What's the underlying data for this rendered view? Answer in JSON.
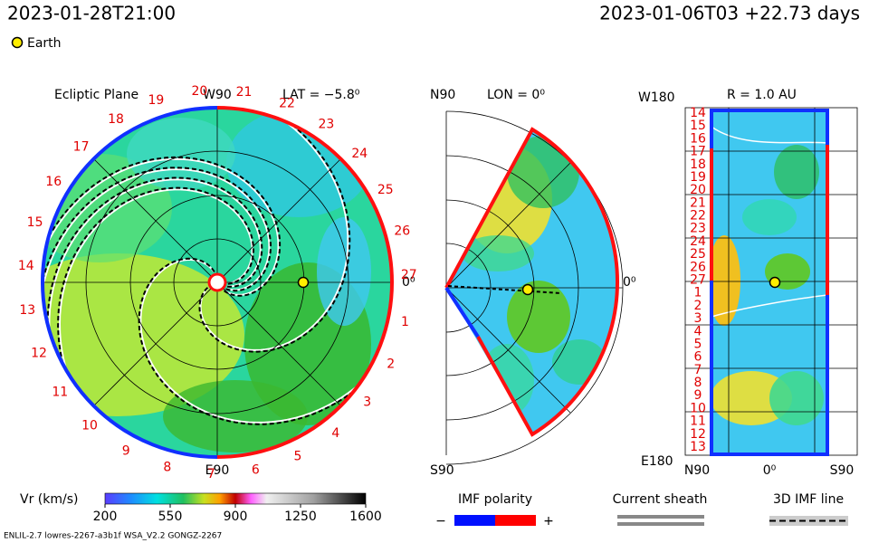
{
  "header": {
    "time": "2023-01-28T21:00",
    "reference": "2023-01-06T03 +22.73 days"
  },
  "legend": {
    "earth": "Earth"
  },
  "ecliptic_panel": {
    "title": "Ecliptic Plane",
    "top_label": "W90",
    "latitude": "LAT = −5.8⁰",
    "bottom_label": "E90",
    "right_label": "0⁰",
    "day_labels": [
      "1",
      "2",
      "3",
      "4",
      "5",
      "6",
      "7",
      "8",
      "9",
      "10",
      "11",
      "12",
      "13",
      "14",
      "15",
      "16",
      "17",
      "18",
      "19",
      "20",
      "21",
      "22",
      "23",
      "24",
      "25",
      "26",
      "27"
    ]
  },
  "meridional_panel": {
    "top_label": "N90",
    "longitude": "LON = 0⁰",
    "right_label": "0⁰",
    "bottom_label": "S90"
  },
  "radial_panel": {
    "title": "R = 1.0 AU",
    "top_left_label": "W180",
    "bottom_left_label": "E180",
    "bottom_labels": [
      "N90",
      "0⁰",
      "S90"
    ],
    "day_labels": [
      "14",
      "15",
      "16",
      "17",
      "18",
      "19",
      "20",
      "21",
      "22",
      "23",
      "24",
      "25",
      "26",
      "27",
      "1",
      "2",
      "3",
      "4",
      "5",
      "6",
      "7",
      "8",
      "9",
      "10",
      "11",
      "12",
      "13"
    ]
  },
  "colorbar": {
    "label": "Vr (km/s)",
    "range": [
      200,
      1600
    ],
    "ticks": [
      200,
      550,
      900,
      1250,
      1600
    ]
  },
  "key": {
    "imf_polarity": "IMF polarity",
    "minus": "−",
    "plus": "+",
    "current_sheath": "Current sheath",
    "imf_line": "3D IMF line"
  },
  "footer": "ENLIL-2.7 lowres-2267-a3b1f WSA_V2.2 GONGZ-2267"
}
